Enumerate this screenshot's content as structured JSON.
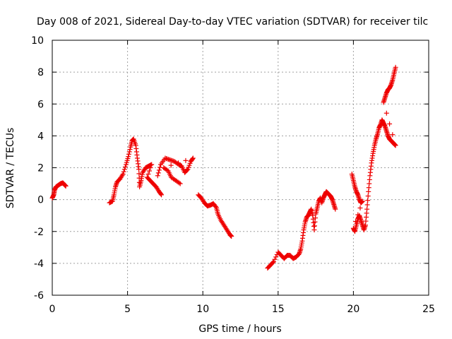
{
  "chart_data": {
    "type": "scatter",
    "title": "Day 008 of 2021, Sidereal Day-to-day VTEC variation (SDTVAR) for receiver tilc",
    "xlabel": "GPS time / hours",
    "ylabel": "SDTVAR / TECUs",
    "xlim": [
      0,
      25
    ],
    "ylim": [
      -6,
      10
    ],
    "xticks": [
      0,
      5,
      10,
      15,
      20,
      25
    ],
    "yticks": [
      -6,
      -4,
      -2,
      0,
      2,
      4,
      6,
      8,
      10
    ],
    "grid": true,
    "marker": "+",
    "series": [
      {
        "name": "SDTVAR",
        "color": "#ee0000",
        "segments": [
          [
            [
              0.0,
              0.1
            ],
            [
              0.1,
              0.3
            ],
            [
              0.15,
              0.6
            ],
            [
              0.25,
              0.8
            ],
            [
              0.4,
              0.9
            ],
            [
              0.55,
              1.0
            ],
            [
              0.7,
              1.05
            ],
            [
              0.8,
              0.95
            ],
            [
              0.9,
              0.85
            ]
          ],
          [
            [
              3.8,
              -0.2
            ],
            [
              4.0,
              -0.1
            ],
            [
              4.1,
              0.3
            ],
            [
              4.2,
              0.8
            ],
            [
              4.3,
              1.1
            ],
            [
              4.5,
              1.3
            ],
            [
              4.7,
              1.6
            ],
            [
              4.9,
              2.2
            ],
            [
              5.05,
              2.7
            ],
            [
              5.2,
              3.3
            ],
            [
              5.3,
              3.7
            ],
            [
              5.4,
              3.8
            ],
            [
              5.55,
              3.4
            ],
            [
              5.65,
              2.6
            ],
            [
              5.75,
              1.9
            ],
            [
              5.8,
              0.8
            ],
            [
              5.9,
              1.2
            ],
            [
              6.0,
              1.7
            ],
            [
              6.2,
              2.0
            ],
            [
              6.4,
              2.1
            ],
            [
              6.6,
              2.2
            ],
            [
              6.3,
              1.4
            ],
            [
              6.5,
              1.2
            ],
            [
              6.7,
              1.0
            ],
            [
              6.9,
              0.8
            ],
            [
              7.1,
              0.5
            ],
            [
              7.25,
              0.3
            ]
          ],
          [
            [
              7.0,
              1.5
            ],
            [
              7.2,
              2.2
            ],
            [
              7.5,
              2.6
            ],
            [
              7.8,
              2.5
            ],
            [
              8.1,
              2.4
            ],
            [
              8.4,
              2.2
            ],
            [
              8.6,
              2.1
            ],
            [
              8.8,
              1.7
            ],
            [
              9.0,
              1.9
            ],
            [
              9.2,
              2.4
            ],
            [
              9.35,
              2.6
            ],
            [
              7.4,
              2.0
            ],
            [
              7.7,
              1.8
            ],
            [
              7.9,
              1.4
            ],
            [
              8.2,
              1.2
            ],
            [
              8.5,
              1.0
            ]
          ],
          [
            [
              9.7,
              0.3
            ],
            [
              9.9,
              0.1
            ],
            [
              10.1,
              -0.2
            ],
            [
              10.3,
              -0.4
            ],
            [
              10.5,
              -0.35
            ],
            [
              10.7,
              -0.25
            ],
            [
              10.9,
              -0.5
            ],
            [
              11.0,
              -0.9
            ],
            [
              11.2,
              -1.3
            ],
            [
              11.4,
              -1.6
            ],
            [
              11.6,
              -1.9
            ],
            [
              11.8,
              -2.2
            ],
            [
              11.9,
              -2.3
            ]
          ],
          [
            [
              14.3,
              -4.3
            ],
            [
              14.5,
              -4.1
            ],
            [
              14.7,
              -3.9
            ],
            [
              15.0,
              -3.3
            ],
            [
              15.2,
              -3.5
            ],
            [
              15.4,
              -3.7
            ],
            [
              15.6,
              -3.5
            ],
            [
              15.8,
              -3.5
            ],
            [
              16.0,
              -3.7
            ],
            [
              16.2,
              -3.6
            ],
            [
              16.4,
              -3.4
            ],
            [
              16.5,
              -3.1
            ],
            [
              16.6,
              -2.6
            ],
            [
              16.7,
              -1.9
            ],
            [
              16.8,
              -1.4
            ],
            [
              16.9,
              -1.1
            ],
            [
              17.0,
              -1.0
            ],
            [
              17.1,
              -0.8
            ],
            [
              17.2,
              -0.6
            ],
            [
              17.3,
              -1.0
            ],
            [
              17.4,
              -1.9
            ],
            [
              17.5,
              -0.9
            ],
            [
              17.6,
              -0.5
            ],
            [
              17.7,
              -0.1
            ],
            [
              17.8,
              0.1
            ],
            [
              17.9,
              -0.2
            ],
            [
              18.0,
              0.1
            ],
            [
              18.1,
              0.3
            ],
            [
              18.2,
              0.5
            ],
            [
              18.3,
              0.4
            ],
            [
              18.4,
              0.3
            ],
            [
              18.5,
              0.2
            ],
            [
              18.6,
              0.0
            ],
            [
              18.7,
              -0.3
            ],
            [
              18.8,
              -0.6
            ]
          ],
          [
            [
              19.9,
              1.6
            ],
            [
              20.0,
              1.2
            ],
            [
              20.1,
              0.8
            ],
            [
              20.2,
              0.5
            ],
            [
              20.3,
              0.3
            ],
            [
              20.4,
              0.0
            ],
            [
              20.5,
              -0.2
            ],
            [
              20.6,
              -0.1
            ],
            [
              20.0,
              -1.8
            ],
            [
              20.1,
              -2.0
            ],
            [
              20.2,
              -1.6
            ],
            [
              20.3,
              -1.2
            ],
            [
              20.4,
              -1.0
            ],
            [
              20.5,
              -1.3
            ],
            [
              20.6,
              -1.6
            ],
            [
              20.7,
              -1.9
            ],
            [
              20.8,
              -1.6
            ],
            [
              20.9,
              -0.6
            ],
            [
              21.0,
              0.5
            ],
            [
              21.1,
              1.5
            ],
            [
              21.2,
              2.3
            ],
            [
              21.3,
              2.9
            ],
            [
              21.4,
              3.4
            ],
            [
              21.5,
              3.8
            ],
            [
              21.6,
              4.1
            ],
            [
              21.7,
              4.5
            ],
            [
              21.8,
              4.7
            ],
            [
              21.9,
              5.0
            ],
            [
              22.0,
              4.8
            ],
            [
              22.1,
              4.6
            ],
            [
              22.2,
              4.3
            ],
            [
              22.3,
              4.0
            ],
            [
              22.4,
              3.8
            ],
            [
              22.5,
              3.7
            ],
            [
              22.6,
              3.6
            ],
            [
              22.7,
              3.5
            ],
            [
              22.8,
              3.4
            ],
            [
              22.0,
              6.1
            ],
            [
              22.1,
              6.4
            ],
            [
              22.2,
              6.7
            ],
            [
              22.3,
              6.9
            ],
            [
              22.4,
              7.0
            ],
            [
              22.5,
              7.2
            ],
            [
              22.6,
              7.5
            ],
            [
              22.7,
              7.9
            ],
            [
              22.8,
              8.3
            ]
          ]
        ]
      }
    ]
  }
}
